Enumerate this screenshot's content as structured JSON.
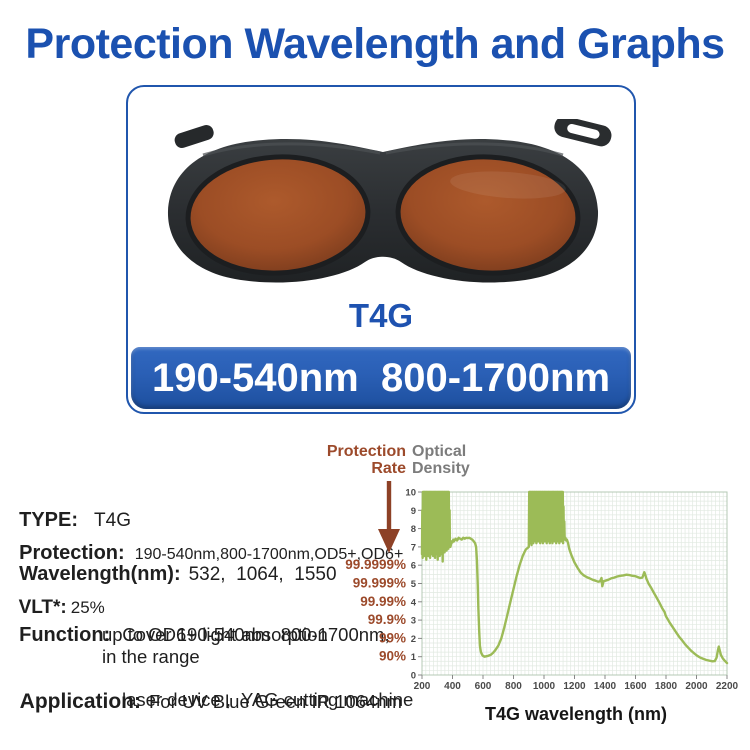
{
  "title": "Protection Wavelength and Graphs",
  "product": {
    "model_caption": "T4G",
    "banner_text": "190-540nm  800-1700nm"
  },
  "specs": {
    "type_label": "TYPE:",
    "type_value": "T4G",
    "protection_label": "Protection:",
    "protection_value": "190-540nm,800-1700nm,OD5+,OD6+",
    "wavelength_label": "Wavelength(nm):",
    "wavelength_value": "532,  1064,  1550",
    "vlt_label": "VLT*:",
    "vlt_value": "25%",
    "function_label": "Function:",
    "function_line1": "Cover 190-540nm  800-1700nm,",
    "function_line2": "up to OD6+ light absorption",
    "function_line3": "in the range",
    "application_label": "Application:",
    "application_line1": "For UV Blue Green IR 1064nm",
    "application_line2": "laser device ,  YAG cutting machine"
  },
  "chart": {
    "header": {
      "protection_line1": "Protection",
      "protection_line2": "Rate",
      "optical_line1": "Optical",
      "optical_line2": "Density"
    },
    "arrow_color": "#8d4126"
  },
  "chart_data": {
    "type": "line",
    "title": "",
    "xlabel": "T4G wavelength (nm)",
    "ylabel": "Optical Density",
    "y2label": "Protection Rate",
    "xlim": [
      200,
      2200
    ],
    "ylim": [
      0,
      10
    ],
    "grid": true,
    "grid_minor_x": 25,
    "grid_minor_y": 0.25,
    "x_ticks": [
      200,
      400,
      600,
      800,
      1000,
      1200,
      1400,
      1600,
      1800,
      2000,
      2200
    ],
    "y_ticks": [
      0,
      1,
      2,
      3,
      4,
      5,
      6,
      7,
      8,
      9,
      10
    ],
    "protection_rate_ticks": [
      {
        "od": 6,
        "label": "99.9999%"
      },
      {
        "od": 5,
        "label": "99.999%"
      },
      {
        "od": 4,
        "label": "99.99%"
      },
      {
        "od": 3,
        "label": "99.9%"
      },
      {
        "od": 2,
        "label": "99%"
      },
      {
        "od": 1,
        "label": "90%"
      }
    ],
    "colors": {
      "line": "#9cbb57",
      "grid": "#e1e9e1",
      "plot_border": "#b4c8b4",
      "tick": "#888888",
      "tick_label": "#4a4a4a",
      "rate_label": "#9c4a2b"
    },
    "series": [
      {
        "name": "T4G optical density",
        "color": "#9cbb57",
        "points": [
          [
            200,
            6.6
          ],
          [
            202,
            9.0
          ],
          [
            204,
            6.4
          ],
          [
            206,
            10
          ],
          [
            208,
            10
          ],
          [
            211,
            6.8
          ],
          [
            213,
            10
          ],
          [
            216,
            6.5
          ],
          [
            218,
            10
          ],
          [
            221,
            10
          ],
          [
            223,
            6.9
          ],
          [
            226,
            10
          ],
          [
            228,
            6.3
          ],
          [
            231,
            10
          ],
          [
            233,
            10
          ],
          [
            236,
            6.7
          ],
          [
            238,
            10
          ],
          [
            241,
            6.5
          ],
          [
            243,
            10
          ],
          [
            246,
            10
          ],
          [
            248,
            6.8
          ],
          [
            251,
            10
          ],
          [
            253,
            6.4
          ],
          [
            256,
            10
          ],
          [
            258,
            10
          ],
          [
            261,
            6.6
          ],
          [
            263,
            10
          ],
          [
            266,
            6.9
          ],
          [
            268,
            10
          ],
          [
            271,
            10
          ],
          [
            273,
            6.5
          ],
          [
            276,
            10
          ],
          [
            278,
            6.7
          ],
          [
            281,
            10
          ],
          [
            283,
            10
          ],
          [
            286,
            6.4
          ],
          [
            288,
            10
          ],
          [
            291,
            6.8
          ],
          [
            293,
            10
          ],
          [
            296,
            10
          ],
          [
            298,
            6.6
          ],
          [
            301,
            10
          ],
          [
            303,
            6.3
          ],
          [
            306,
            10
          ],
          [
            308,
            10
          ],
          [
            311,
            6.7
          ],
          [
            313,
            10
          ],
          [
            316,
            6.5
          ],
          [
            318,
            10
          ],
          [
            321,
            10
          ],
          [
            323,
            6.9
          ],
          [
            326,
            10
          ],
          [
            328,
            6.6
          ],
          [
            331,
            10
          ],
          [
            333,
            10
          ],
          [
            336,
            6.2
          ],
          [
            338,
            10
          ],
          [
            341,
            6.8
          ],
          [
            343,
            10
          ],
          [
            346,
            10
          ],
          [
            348,
            6.7
          ],
          [
            351,
            10
          ],
          [
            353,
            7.0
          ],
          [
            356,
            10
          ],
          [
            358,
            10
          ],
          [
            361,
            6.8
          ],
          [
            363,
            10
          ],
          [
            366,
            7.1
          ],
          [
            368,
            10
          ],
          [
            371,
            10
          ],
          [
            373,
            6.9
          ],
          [
            376,
            10
          ],
          [
            378,
            7.2
          ],
          [
            381,
            9.0
          ],
          [
            383,
            7.1
          ],
          [
            386,
            7.0
          ],
          [
            390,
            7.15
          ],
          [
            395,
            7.3
          ],
          [
            400,
            7.25
          ],
          [
            405,
            7.4
          ],
          [
            410,
            7.3
          ],
          [
            420,
            7.45
          ],
          [
            430,
            7.35
          ],
          [
            440,
            7.5
          ],
          [
            450,
            7.45
          ],
          [
            460,
            7.4
          ],
          [
            470,
            7.5
          ],
          [
            480,
            7.45
          ],
          [
            490,
            7.5
          ],
          [
            500,
            7.48
          ],
          [
            510,
            7.5
          ],
          [
            520,
            7.45
          ],
          [
            530,
            7.4
          ],
          [
            540,
            7.3
          ],
          [
            548,
            7.2
          ],
          [
            555,
            7.0
          ],
          [
            560,
            6.3
          ],
          [
            565,
            5.0
          ],
          [
            570,
            3.6
          ],
          [
            575,
            2.4
          ],
          [
            580,
            1.6
          ],
          [
            586,
            1.25
          ],
          [
            595,
            1.1
          ],
          [
            600,
            1.05
          ],
          [
            610,
            1.0
          ],
          [
            620,
            1.02
          ],
          [
            635,
            1.05
          ],
          [
            650,
            1.1
          ],
          [
            665,
            1.2
          ],
          [
            680,
            1.35
          ],
          [
            700,
            1.6
          ],
          [
            720,
            2.0
          ],
          [
            740,
            2.6
          ],
          [
            760,
            3.3
          ],
          [
            780,
            4.0
          ],
          [
            800,
            4.7
          ],
          [
            820,
            5.4
          ],
          [
            840,
            6.0
          ],
          [
            860,
            6.5
          ],
          [
            880,
            6.85
          ],
          [
            900,
            7.0
          ],
          [
            903,
            10
          ],
          [
            905,
            7.2
          ],
          [
            908,
            10
          ],
          [
            910,
            10
          ],
          [
            913,
            7.3
          ],
          [
            915,
            10
          ],
          [
            918,
            7.1
          ],
          [
            920,
            10
          ],
          [
            923,
            10
          ],
          [
            925,
            7.4
          ],
          [
            928,
            10
          ],
          [
            930,
            7.2
          ],
          [
            933,
            10
          ],
          [
            935,
            10
          ],
          [
            938,
            7.5
          ],
          [
            940,
            10
          ],
          [
            943,
            7.3
          ],
          [
            945,
            10
          ],
          [
            948,
            10
          ],
          [
            950,
            7.2
          ],
          [
            953,
            10
          ],
          [
            955,
            7.4
          ],
          [
            958,
            10
          ],
          [
            960,
            10
          ],
          [
            963,
            7.3
          ],
          [
            965,
            10
          ],
          [
            968,
            7.5
          ],
          [
            970,
            10
          ],
          [
            973,
            10
          ],
          [
            975,
            7.2
          ],
          [
            978,
            10
          ],
          [
            980,
            7.4
          ],
          [
            983,
            10
          ],
          [
            985,
            10
          ],
          [
            988,
            7.3
          ],
          [
            990,
            10
          ],
          [
            993,
            7.2
          ],
          [
            995,
            10
          ],
          [
            998,
            10
          ],
          [
            1000,
            7.5
          ],
          [
            1003,
            10
          ],
          [
            1005,
            7.3
          ],
          [
            1008,
            10
          ],
          [
            1010,
            10
          ],
          [
            1013,
            7.4
          ],
          [
            1015,
            10
          ],
          [
            1018,
            7.2
          ],
          [
            1020,
            10
          ],
          [
            1023,
            10
          ],
          [
            1025,
            7.3
          ],
          [
            1028,
            10
          ],
          [
            1030,
            7.5
          ],
          [
            1033,
            10
          ],
          [
            1035,
            10
          ],
          [
            1038,
            7.2
          ],
          [
            1040,
            10
          ],
          [
            1043,
            7.4
          ],
          [
            1045,
            10
          ],
          [
            1048,
            10
          ],
          [
            1050,
            7.3
          ],
          [
            1053,
            10
          ],
          [
            1055,
            7.2
          ],
          [
            1058,
            10
          ],
          [
            1060,
            10
          ],
          [
            1063,
            7.4
          ],
          [
            1065,
            10
          ],
          [
            1068,
            7.3
          ],
          [
            1070,
            10
          ],
          [
            1073,
            10
          ],
          [
            1075,
            7.5
          ],
          [
            1078,
            10
          ],
          [
            1080,
            7.2
          ],
          [
            1083,
            10
          ],
          [
            1085,
            10
          ],
          [
            1088,
            7.4
          ],
          [
            1090,
            10
          ],
          [
            1093,
            7.3
          ],
          [
            1095,
            10
          ],
          [
            1098,
            10
          ],
          [
            1100,
            7.2
          ],
          [
            1103,
            10
          ],
          [
            1105,
            7.5
          ],
          [
            1108,
            10
          ],
          [
            1110,
            10
          ],
          [
            1113,
            7.3
          ],
          [
            1115,
            10
          ],
          [
            1118,
            7.4
          ],
          [
            1120,
            10
          ],
          [
            1123,
            10
          ],
          [
            1125,
            7.2
          ],
          [
            1128,
            9.2
          ],
          [
            1130,
            7.6
          ],
          [
            1133,
            8.4
          ],
          [
            1136,
            7.4
          ],
          [
            1140,
            7.5
          ],
          [
            1145,
            7.35
          ],
          [
            1150,
            7.4
          ],
          [
            1158,
            7.2
          ],
          [
            1165,
            6.9
          ],
          [
            1180,
            6.55
          ],
          [
            1200,
            6.15
          ],
          [
            1220,
            5.85
          ],
          [
            1240,
            5.6
          ],
          [
            1260,
            5.45
          ],
          [
            1280,
            5.35
          ],
          [
            1300,
            5.28
          ],
          [
            1320,
            5.2
          ],
          [
            1340,
            5.15
          ],
          [
            1355,
            5.1
          ],
          [
            1368,
            5.12
          ],
          [
            1377,
            5.3
          ],
          [
            1382,
            4.85
          ],
          [
            1390,
            5.12
          ],
          [
            1400,
            5.15
          ],
          [
            1420,
            5.2
          ],
          [
            1440,
            5.28
          ],
          [
            1460,
            5.32
          ],
          [
            1480,
            5.38
          ],
          [
            1500,
            5.42
          ],
          [
            1520,
            5.44
          ],
          [
            1540,
            5.48
          ],
          [
            1560,
            5.46
          ],
          [
            1580,
            5.42
          ],
          [
            1600,
            5.4
          ],
          [
            1615,
            5.35
          ],
          [
            1630,
            5.3
          ],
          [
            1645,
            5.32
          ],
          [
            1658,
            5.62
          ],
          [
            1665,
            5.45
          ],
          [
            1672,
            5.25
          ],
          [
            1685,
            5.0
          ],
          [
            1700,
            4.8
          ],
          [
            1720,
            4.5
          ],
          [
            1740,
            4.2
          ],
          [
            1760,
            3.9
          ],
          [
            1775,
            3.65
          ],
          [
            1790,
            3.45
          ],
          [
            1800,
            3.2
          ],
          [
            1808,
            3.1
          ],
          [
            1825,
            2.85
          ],
          [
            1845,
            2.6
          ],
          [
            1865,
            2.35
          ],
          [
            1885,
            2.1
          ],
          [
            1905,
            1.9
          ],
          [
            1925,
            1.68
          ],
          [
            1945,
            1.5
          ],
          [
            1965,
            1.32
          ],
          [
            1985,
            1.18
          ],
          [
            2005,
            1.05
          ],
          [
            2025,
            0.95
          ],
          [
            2045,
            0.88
          ],
          [
            2065,
            0.82
          ],
          [
            2085,
            0.78
          ],
          [
            2105,
            0.75
          ],
          [
            2120,
            0.76
          ],
          [
            2132,
            0.95
          ],
          [
            2140,
            1.35
          ],
          [
            2146,
            1.55
          ],
          [
            2152,
            1.35
          ],
          [
            2160,
            1.1
          ],
          [
            2172,
            0.92
          ],
          [
            2185,
            0.78
          ],
          [
            2200,
            0.65
          ]
        ]
      }
    ]
  }
}
